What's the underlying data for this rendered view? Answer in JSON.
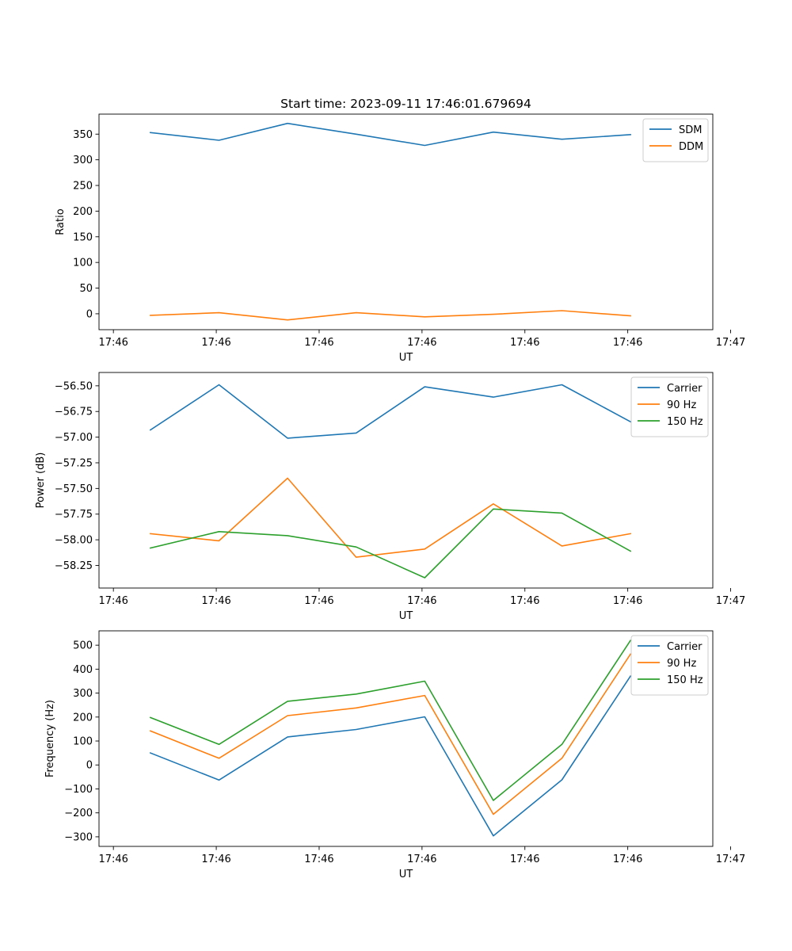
{
  "figure_title": "Start time: 2023-09-11 17:46:01.679694",
  "colors": {
    "blue": "#1f77b4",
    "orange": "#ff7f0e",
    "green": "#2ca02c"
  },
  "chart_data": [
    {
      "type": "line",
      "title": "Start time: 2023-09-11 17:46:01.679694",
      "xlabel": "UT",
      "ylabel": "Ratio",
      "x": [
        1,
        2,
        3,
        4,
        5,
        6,
        7,
        8
      ],
      "xlim": [
        0.25,
        9.2
      ],
      "x_ticks": [
        0.46,
        1.96,
        3.46,
        4.96,
        6.46,
        7.96,
        9.46
      ],
      "x_tick_labels": [
        "17:46",
        "17:46",
        "17:46",
        "17:46",
        "17:46",
        "17:46",
        "17:47"
      ],
      "ylim": [
        -31,
        389
      ],
      "y_ticks": [
        0,
        50,
        100,
        150,
        200,
        250,
        300,
        350
      ],
      "y_tick_labels": [
        "0",
        "50",
        "100",
        "150",
        "200",
        "250",
        "300",
        "350"
      ],
      "legend_position": "top-right",
      "series": [
        {
          "name": "SDM",
          "color": "#1f77b4",
          "values": [
            353,
            338,
            371,
            350,
            328,
            354,
            340,
            349
          ]
        },
        {
          "name": "DDM",
          "color": "#ff7f0e",
          "values": [
            -3,
            2,
            -12,
            2,
            -6,
            -1,
            6,
            -4
          ]
        }
      ]
    },
    {
      "type": "line",
      "title": "",
      "xlabel": "UT",
      "ylabel": "Power (dB)",
      "x": [
        1,
        2,
        3,
        4,
        5,
        6,
        7,
        8
      ],
      "xlim": [
        0.25,
        9.2
      ],
      "x_ticks": [
        0.46,
        1.96,
        3.46,
        4.96,
        6.46,
        7.96,
        9.46
      ],
      "x_tick_labels": [
        "17:46",
        "17:46",
        "17:46",
        "17:46",
        "17:46",
        "17:46",
        "17:47"
      ],
      "ylim": [
        -58.47,
        -56.37
      ],
      "y_ticks": [
        -58.25,
        -58.0,
        -57.75,
        -57.5,
        -57.25,
        -57.0,
        -56.75,
        -56.5
      ],
      "y_tick_labels": [
        "−58.25",
        "−58.00",
        "−57.75",
        "−57.50",
        "−57.25",
        "−57.00",
        "−56.75",
        "−56.50"
      ],
      "legend_position": "top-right",
      "series": [
        {
          "name": "Carrier",
          "color": "#1f77b4",
          "values": [
            -56.93,
            -56.49,
            -57.01,
            -56.96,
            -56.51,
            -56.61,
            -56.49,
            -56.85
          ]
        },
        {
          "name": "90 Hz",
          "color": "#ff7f0e",
          "values": [
            -57.94,
            -58.01,
            -57.4,
            -58.17,
            -58.09,
            -57.65,
            -58.06,
            -57.94
          ]
        },
        {
          "name": "150 Hz",
          "color": "#2ca02c",
          "values": [
            -58.08,
            -57.92,
            -57.96,
            -58.07,
            -58.37,
            -57.7,
            -57.74,
            -58.11
          ]
        }
      ]
    },
    {
      "type": "line",
      "title": "",
      "xlabel": "UT",
      "ylabel": "Frequency (Hz)",
      "x": [
        1,
        2,
        3,
        4,
        5,
        6,
        7,
        8
      ],
      "xlim": [
        0.25,
        9.2
      ],
      "x_ticks": [
        0.46,
        1.96,
        3.46,
        4.96,
        6.46,
        7.96,
        9.46
      ],
      "x_tick_labels": [
        "17:46",
        "17:46",
        "17:46",
        "17:46",
        "17:46",
        "17:46",
        "17:47"
      ],
      "ylim": [
        -340,
        560
      ],
      "y_ticks": [
        -300,
        -200,
        -100,
        0,
        100,
        200,
        300,
        400,
        500
      ],
      "y_tick_labels": [
        "−300",
        "−200",
        "−100",
        "0",
        "100",
        "200",
        "300",
        "400",
        "500"
      ],
      "legend_position": "top-right",
      "series": [
        {
          "name": "Carrier",
          "color": "#1f77b4",
          "values": [
            50,
            -63,
            117,
            148,
            201,
            -296,
            -62,
            371
          ]
        },
        {
          "name": "90 Hz",
          "color": "#ff7f0e",
          "values": [
            142,
            28,
            206,
            238,
            290,
            -206,
            28,
            463
          ]
        },
        {
          "name": "150 Hz",
          "color": "#2ca02c",
          "values": [
            198,
            86,
            266,
            296,
            350,
            -148,
            86,
            520
          ]
        }
      ]
    }
  ]
}
